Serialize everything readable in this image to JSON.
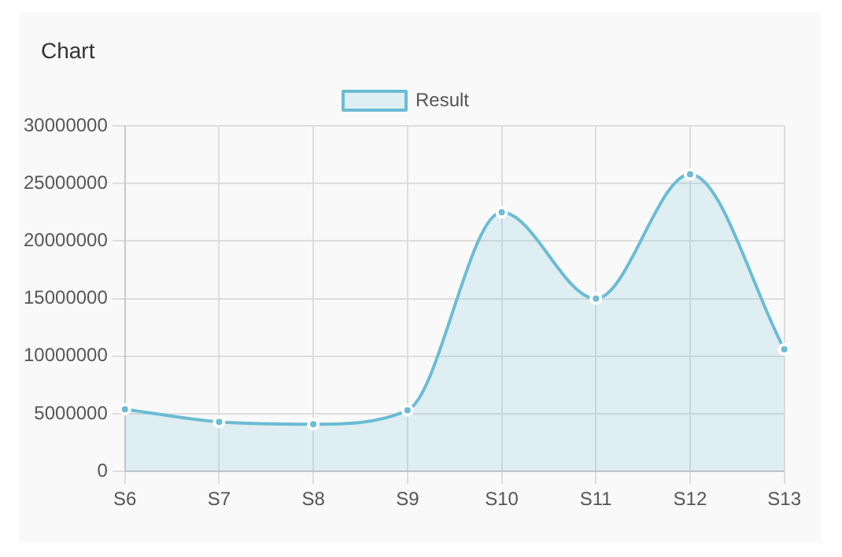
{
  "chart_data": {
    "type": "area",
    "title": "Chart",
    "categories": [
      "S6",
      "S7",
      "S8",
      "S9",
      "S10",
      "S11",
      "S12",
      "S13"
    ],
    "series": [
      {
        "name": "Result",
        "color": "#6bbcd4",
        "values": [
          5400000,
          4300000,
          4100000,
          5300000,
          22500000,
          15000000,
          25800000,
          10600000
        ]
      }
    ],
    "ylim": [
      0,
      30000000
    ],
    "yticks": [
      0,
      5000000,
      10000000,
      15000000,
      20000000,
      25000000,
      30000000
    ],
    "grid": true,
    "legend": "top",
    "marker": "circle"
  }
}
